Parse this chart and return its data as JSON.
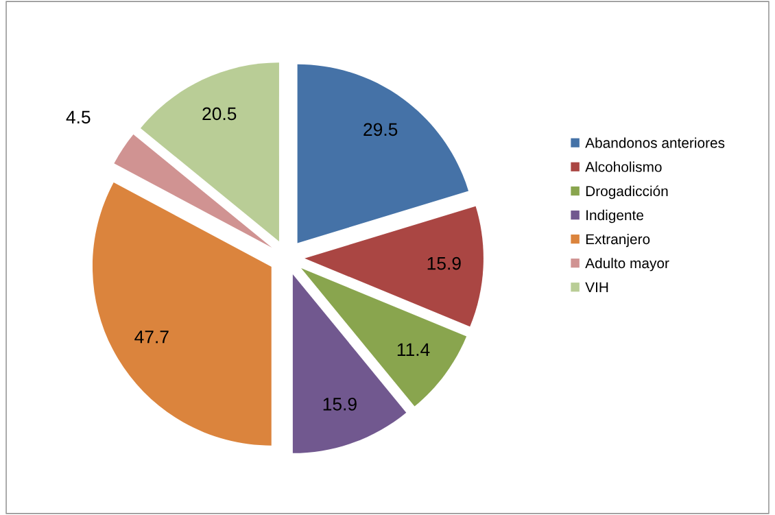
{
  "chart_data": {
    "type": "pie",
    "categories": [
      "Abandonos anteriores",
      "Alcoholismo",
      "Drogadicción",
      "Indigente",
      "Extranjero",
      "Adulto mayor",
      "VIH"
    ],
    "values": [
      29.5,
      15.9,
      11.4,
      15.9,
      47.7,
      4.5,
      20.5
    ],
    "colors": [
      "#4572a7",
      "#aa4643",
      "#89a54e",
      "#71588f",
      "#db843d",
      "#d09392",
      "#b9cd96"
    ],
    "data_labels": true,
    "legend": "right"
  }
}
